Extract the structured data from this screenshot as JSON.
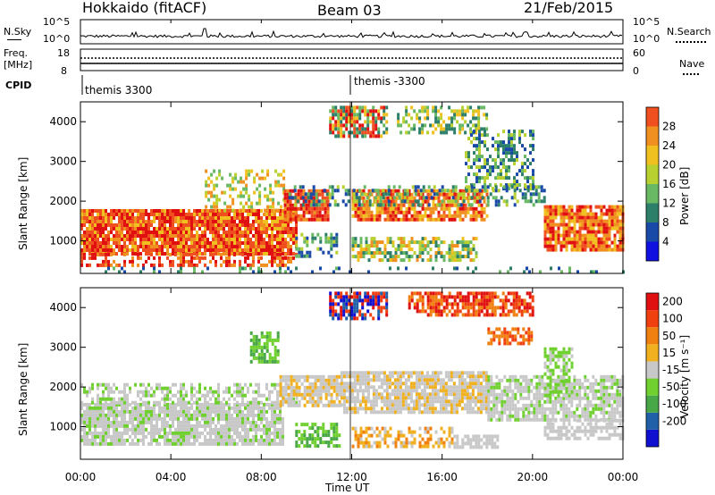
{
  "header": {
    "title": "Hokkaido (fitACF)",
    "beam": "Beam 03",
    "date": "21/Feb/2015"
  },
  "noise_panel": {
    "left_label": "N.Sky",
    "right_label": "N.Search",
    "ticks_left": [
      "10^5",
      "10^0"
    ],
    "ticks_right": [
      "10^5",
      "10^0"
    ]
  },
  "freq_panel": {
    "left_label_1": "Freq.",
    "left_label_2": "[MHz]",
    "right_label": "Nave",
    "ticks_left": [
      "18",
      "8"
    ],
    "ticks_right": [
      "60",
      "0"
    ]
  },
  "cpid_panel": {
    "label": "CPID",
    "modes": [
      "themis 3300",
      "themis -3300"
    ],
    "mode_change_time": "12:00"
  },
  "chart_data": [
    {
      "type": "heatmap",
      "parameter": "Power",
      "ylabel": "Slant Range [km]",
      "yticks": [
        1000,
        2000,
        3000,
        4000
      ],
      "ylim": [
        180,
        4500
      ],
      "colorbar_label": "Power [dB]",
      "colorbar_ticks": [
        4,
        8,
        12,
        16,
        20,
        24,
        28
      ],
      "colors": [
        "#1010e0",
        "#1a4aa8",
        "#2d7f6a",
        "#68b864",
        "#b8d030",
        "#f0c020",
        "#f09020",
        "#f05020",
        "#e01010"
      ]
    },
    {
      "type": "heatmap",
      "parameter": "Velocity",
      "ylabel": "Slant Range [km]",
      "yticks": [
        1000,
        2000,
        3000,
        4000
      ],
      "ylim": [
        180,
        4500
      ],
      "colorbar_label": "Velocity [m s⁻¹]",
      "colorbar_ticks": [
        200,
        100,
        50,
        15,
        -15,
        -50,
        -100,
        -200
      ],
      "colors": [
        "#1010d0",
        "#2060a8",
        "#48a848",
        "#70d030",
        "#c8c8c8",
        "#f0b020",
        "#f08010",
        "#f04010",
        "#e01010"
      ]
    }
  ],
  "xaxis": {
    "label": "Time UT",
    "ticks": [
      "00:00",
      "04:00",
      "08:00",
      "12:00",
      "16:00",
      "20:00",
      "00:00"
    ]
  }
}
